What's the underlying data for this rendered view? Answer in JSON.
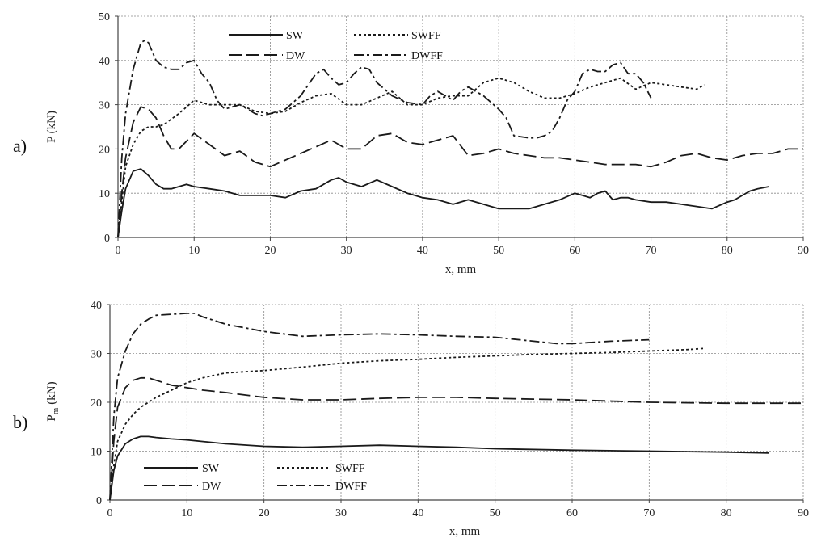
{
  "chart_data": [
    {
      "panel": "a)",
      "type": "line",
      "xlabel": "x, mm",
      "ylabel": "P (kN)",
      "xlim": [
        0,
        90
      ],
      "ylim": [
        0,
        50
      ],
      "xticks": [
        "0",
        "10",
        "20",
        "30",
        "40",
        "50",
        "60",
        "70",
        "80",
        "90"
      ],
      "yticks": [
        "0",
        "10",
        "20",
        "30",
        "40",
        "50"
      ],
      "grid": true,
      "legend": "top-center",
      "series": [
        {
          "name": "SW",
          "dash": "solid",
          "x": [
            0,
            0.5,
            1,
            2,
            3,
            4,
            5,
            6,
            7,
            8,
            9,
            10,
            12,
            14,
            16,
            18,
            20,
            22,
            24,
            26,
            28,
            29,
            30,
            32,
            34,
            36,
            38,
            40,
            42,
            44,
            46,
            48,
            50,
            52,
            54,
            56,
            58,
            60,
            61,
            62,
            63,
            64,
            65,
            66,
            67,
            68,
            70,
            72,
            74,
            76,
            78,
            80,
            81,
            82,
            83,
            84,
            85.5
          ],
          "y": [
            0,
            6,
            11,
            15,
            15.5,
            14,
            12,
            11,
            11,
            11.5,
            12,
            11.5,
            11,
            10.5,
            9.5,
            9.5,
            9.5,
            9,
            10.5,
            11,
            13,
            13.5,
            12.5,
            11.5,
            13,
            11.5,
            10,
            9,
            8.5,
            7.5,
            8.5,
            7.5,
            6.5,
            6.5,
            6.5,
            7.5,
            8.5,
            10,
            9.5,
            9,
            10,
            10.5,
            8.5,
            9,
            9,
            8.5,
            8,
            8,
            7.5,
            7,
            6.5,
            8,
            8.5,
            9.5,
            10.5,
            11,
            11.5
          ]
        },
        {
          "name": "SWFF",
          "dash": "short",
          "x": [
            0,
            0.5,
            1,
            2,
            3,
            4,
            5,
            6,
            8,
            10,
            12,
            14,
            16,
            18,
            20,
            22,
            24,
            26,
            28,
            30,
            32,
            34,
            36,
            38,
            40,
            42,
            44,
            46,
            48,
            50,
            52,
            54,
            56,
            58,
            60,
            62,
            64,
            66,
            68,
            70,
            72,
            74,
            76,
            77
          ],
          "y": [
            0,
            8,
            16,
            21,
            24,
            25,
            25,
            25.5,
            28,
            31,
            30,
            30,
            30,
            28.5,
            28,
            28.5,
            30.5,
            32,
            32.5,
            30,
            30,
            31.5,
            33,
            30,
            30,
            31.5,
            32,
            32,
            35,
            36,
            35,
            33,
            31.5,
            31.5,
            32.5,
            34,
            35,
            36,
            33.5,
            35,
            34.5,
            34,
            33.5,
            34.5
          ]
        },
        {
          "name": "DW",
          "dash": "long",
          "x": [
            0,
            0.5,
            1,
            2,
            3,
            4,
            5,
            6,
            7,
            8,
            10,
            12,
            14,
            16,
            18,
            20,
            22,
            24,
            26,
            28,
            30,
            32,
            34,
            36,
            38,
            40,
            42,
            44,
            46,
            48,
            50,
            52,
            54,
            56,
            58,
            60,
            62,
            64,
            66,
            68,
            70,
            72,
            74,
            76,
            78,
            80,
            82,
            84,
            86,
            88,
            90
          ],
          "y": [
            0,
            10,
            18,
            26,
            29.5,
            29,
            27,
            23,
            20,
            20,
            23.5,
            21,
            18.5,
            19.5,
            17,
            16,
            17.5,
            19,
            20.5,
            22,
            20,
            20,
            23,
            23.5,
            21.5,
            21,
            22,
            23,
            18.5,
            19,
            20,
            19,
            18.5,
            18,
            18,
            17.5,
            17,
            16.5,
            16.5,
            16.5,
            16,
            17,
            18.5,
            19,
            18,
            17.5,
            18.5,
            19,
            19,
            20,
            20
          ]
        },
        {
          "name": "DWFF",
          "dash": "dashdot",
          "x": [
            0,
            0.5,
            1,
            2,
            3,
            3.5,
            4,
            5,
            6,
            7,
            8,
            9,
            10,
            11,
            12,
            13,
            14,
            16,
            18,
            19,
            20,
            22,
            24,
            26,
            27,
            28,
            29,
            30,
            31,
            32,
            33,
            34,
            36,
            38,
            40,
            41,
            42,
            43,
            44,
            45,
            46,
            48,
            50,
            51,
            52,
            54,
            55,
            56,
            57,
            58,
            59,
            60,
            61,
            62,
            63,
            64,
            65,
            66,
            67,
            68,
            69,
            70
          ],
          "y": [
            0,
            18,
            28,
            38,
            44,
            44.5,
            44,
            40,
            38.5,
            38,
            38,
            39.5,
            40,
            37,
            35,
            31,
            29,
            30,
            28,
            27.5,
            28,
            29,
            32,
            37,
            38,
            36,
            34.5,
            35,
            37,
            38.5,
            38,
            35,
            32,
            30.5,
            30,
            32,
            33,
            32,
            31,
            33,
            34,
            32,
            29,
            27,
            23,
            22.5,
            22.5,
            23,
            24,
            27,
            31,
            33,
            37,
            38,
            37.5,
            37.5,
            39,
            39.5,
            37,
            37,
            35,
            31.5
          ]
        }
      ]
    },
    {
      "panel": "b)",
      "type": "line",
      "xlabel": "x, mm",
      "ylabel": "Pm (kN)",
      "xlim": [
        0,
        90
      ],
      "ylim": [
        0,
        40
      ],
      "xticks": [
        "0",
        "10",
        "20",
        "30",
        "40",
        "50",
        "60",
        "70",
        "80",
        "90"
      ],
      "yticks": [
        "0",
        "10",
        "20",
        "30",
        "40"
      ],
      "grid": true,
      "legend": "bottom-left",
      "series": [
        {
          "name": "SW",
          "dash": "solid",
          "x": [
            0,
            0.5,
            1,
            2,
            3,
            4,
            5,
            6,
            8,
            10,
            15,
            20,
            25,
            30,
            35,
            40,
            45,
            50,
            60,
            70,
            80,
            85.5
          ],
          "y": [
            0,
            6,
            9,
            11.5,
            12.5,
            13,
            13,
            12.8,
            12.5,
            12.3,
            11.5,
            11,
            10.8,
            11,
            11.2,
            11,
            10.8,
            10.5,
            10.2,
            10,
            9.8,
            9.6
          ]
        },
        {
          "name": "SWFF",
          "dash": "short",
          "x": [
            0,
            0.5,
            1,
            2,
            3,
            4,
            5,
            6,
            8,
            10,
            12,
            15,
            20,
            25,
            30,
            35,
            40,
            45,
            50,
            55,
            60,
            65,
            70,
            75,
            77
          ],
          "y": [
            0,
            7,
            12,
            15.5,
            17.5,
            19,
            20,
            21,
            22.5,
            24,
            25,
            26,
            26.5,
            27.2,
            28,
            28.5,
            28.8,
            29.2,
            29.5,
            29.8,
            30,
            30.2,
            30.5,
            30.8,
            31
          ]
        },
        {
          "name": "DW",
          "dash": "long",
          "x": [
            0,
            0.5,
            1,
            2,
            3,
            4,
            5,
            6,
            8,
            10,
            12,
            15,
            20,
            25,
            30,
            35,
            40,
            45,
            50,
            60,
            70,
            80,
            90
          ],
          "y": [
            0,
            12,
            19,
            23,
            24.5,
            25,
            25,
            24.5,
            23.5,
            23,
            22.5,
            22,
            21,
            20.5,
            20.5,
            20.8,
            21,
            21,
            20.8,
            20.5,
            20,
            19.8,
            19.8
          ]
        },
        {
          "name": "DWFF",
          "dash": "dashdot",
          "x": [
            0,
            0.5,
            1,
            2,
            3,
            4,
            5,
            6,
            8,
            10,
            11,
            12,
            15,
            20,
            25,
            30,
            35,
            40,
            45,
            50,
            55,
            58,
            60,
            62,
            65,
            70
          ],
          "y": [
            0,
            17,
            25,
            30.5,
            34,
            36,
            37,
            37.8,
            38,
            38.2,
            38.2,
            37.5,
            36,
            34.5,
            33.5,
            33.8,
            34,
            33.8,
            33.5,
            33.3,
            32.5,
            32,
            32,
            32.2,
            32.5,
            32.8
          ]
        }
      ]
    }
  ],
  "legend_labels": {
    "sw": "SW",
    "swff": "SWFF",
    "dw": "DW",
    "dwff": "DWFF"
  },
  "panel_labels": {
    "a": "a)",
    "b": "b)"
  },
  "axis_labels": {
    "a_x": "x, mm",
    "a_y": "P (kN)",
    "b_x": "x, mm",
    "b_y_main": "P",
    "b_y_sub": "m",
    "b_y_unit": "(kN)"
  }
}
